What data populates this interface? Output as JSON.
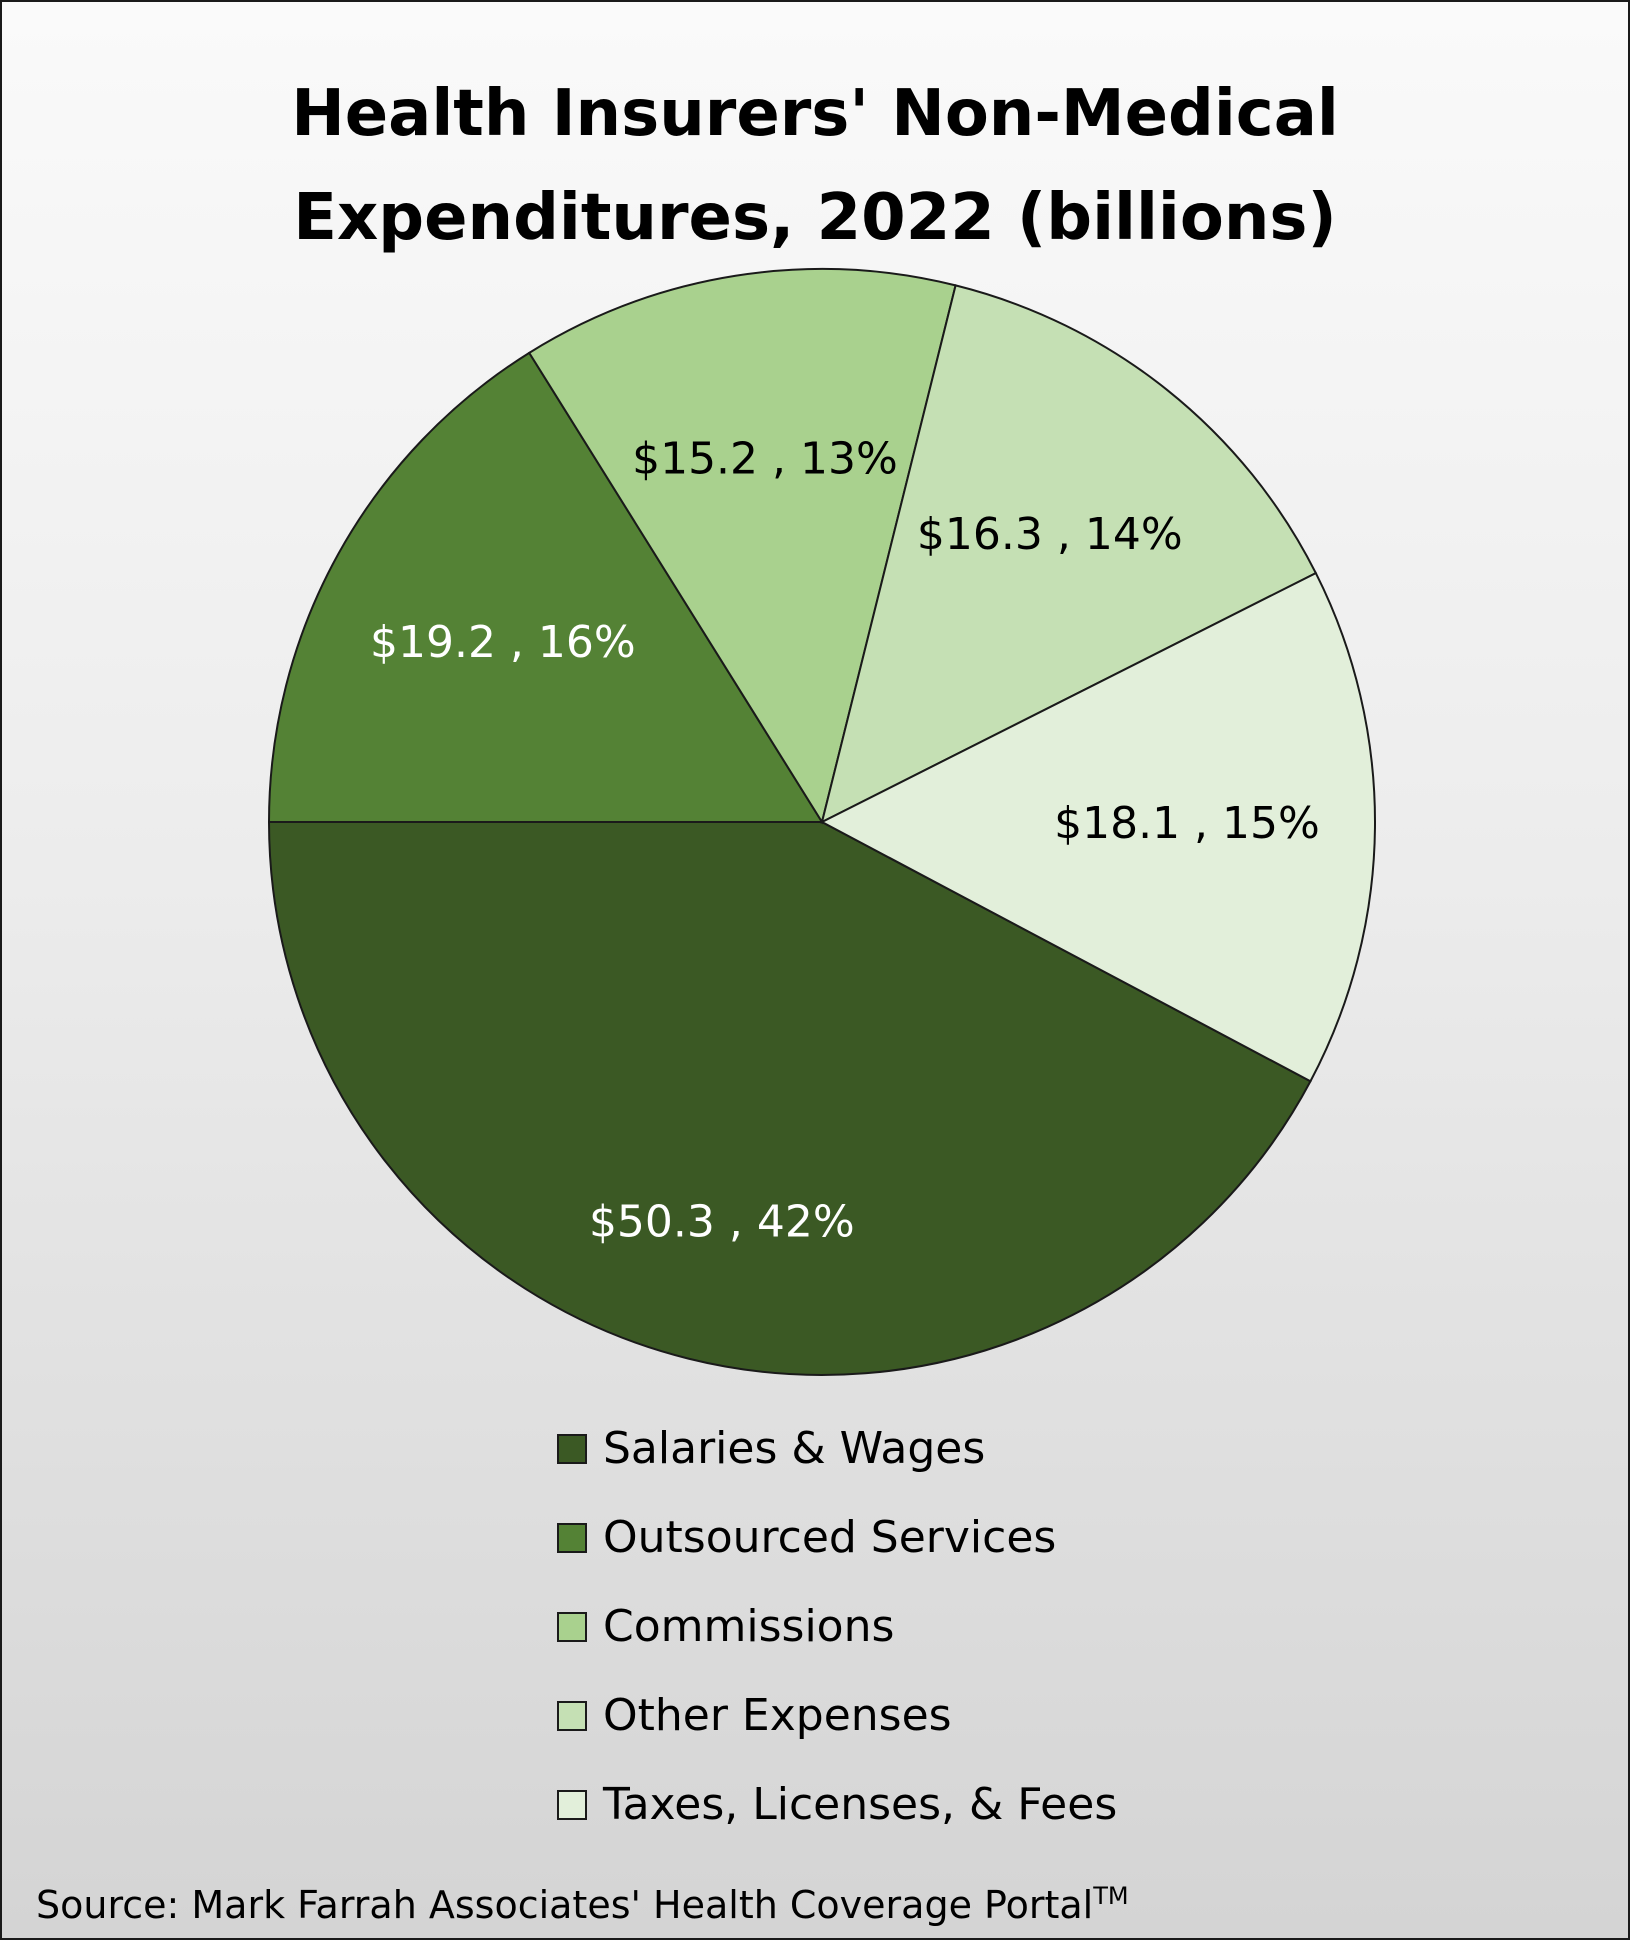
{
  "chart_data": {
    "type": "pie",
    "title_lines": [
      "Health Insurers' Non-Medical",
      "Expenditures, 2022 (billions)"
    ],
    "slices": [
      {
        "label": "Salaries & Wages",
        "value": 50.3,
        "data_label": "$50.3 , 42%",
        "color": "#3b5924",
        "label_color": "#ffffff"
      },
      {
        "label": "Outsourced Services",
        "value": 19.2,
        "data_label": "$19.2 , 16%",
        "color": "#548235",
        "label_color": "#ffffff"
      },
      {
        "label": "Commissions",
        "value": 15.2,
        "data_label": "$15.2 , 13%",
        "color": "#a9d18e",
        "label_color": "#000000"
      },
      {
        "label": "Other Expenses",
        "value": 16.3,
        "data_label": "$16.3 , 14%",
        "color": "#c5e0b4",
        "label_color": "#000000"
      },
      {
        "label": "Taxes, Licenses, & Fees",
        "value": 18.1,
        "data_label": "$18.1 , 15%",
        "color": "#e2efda",
        "label_color": "#000000"
      }
    ],
    "legend_position": "bottom"
  },
  "source": {
    "text": "Source: Mark Farrah Associates' Health Coverage Portal",
    "mark": "TM"
  }
}
